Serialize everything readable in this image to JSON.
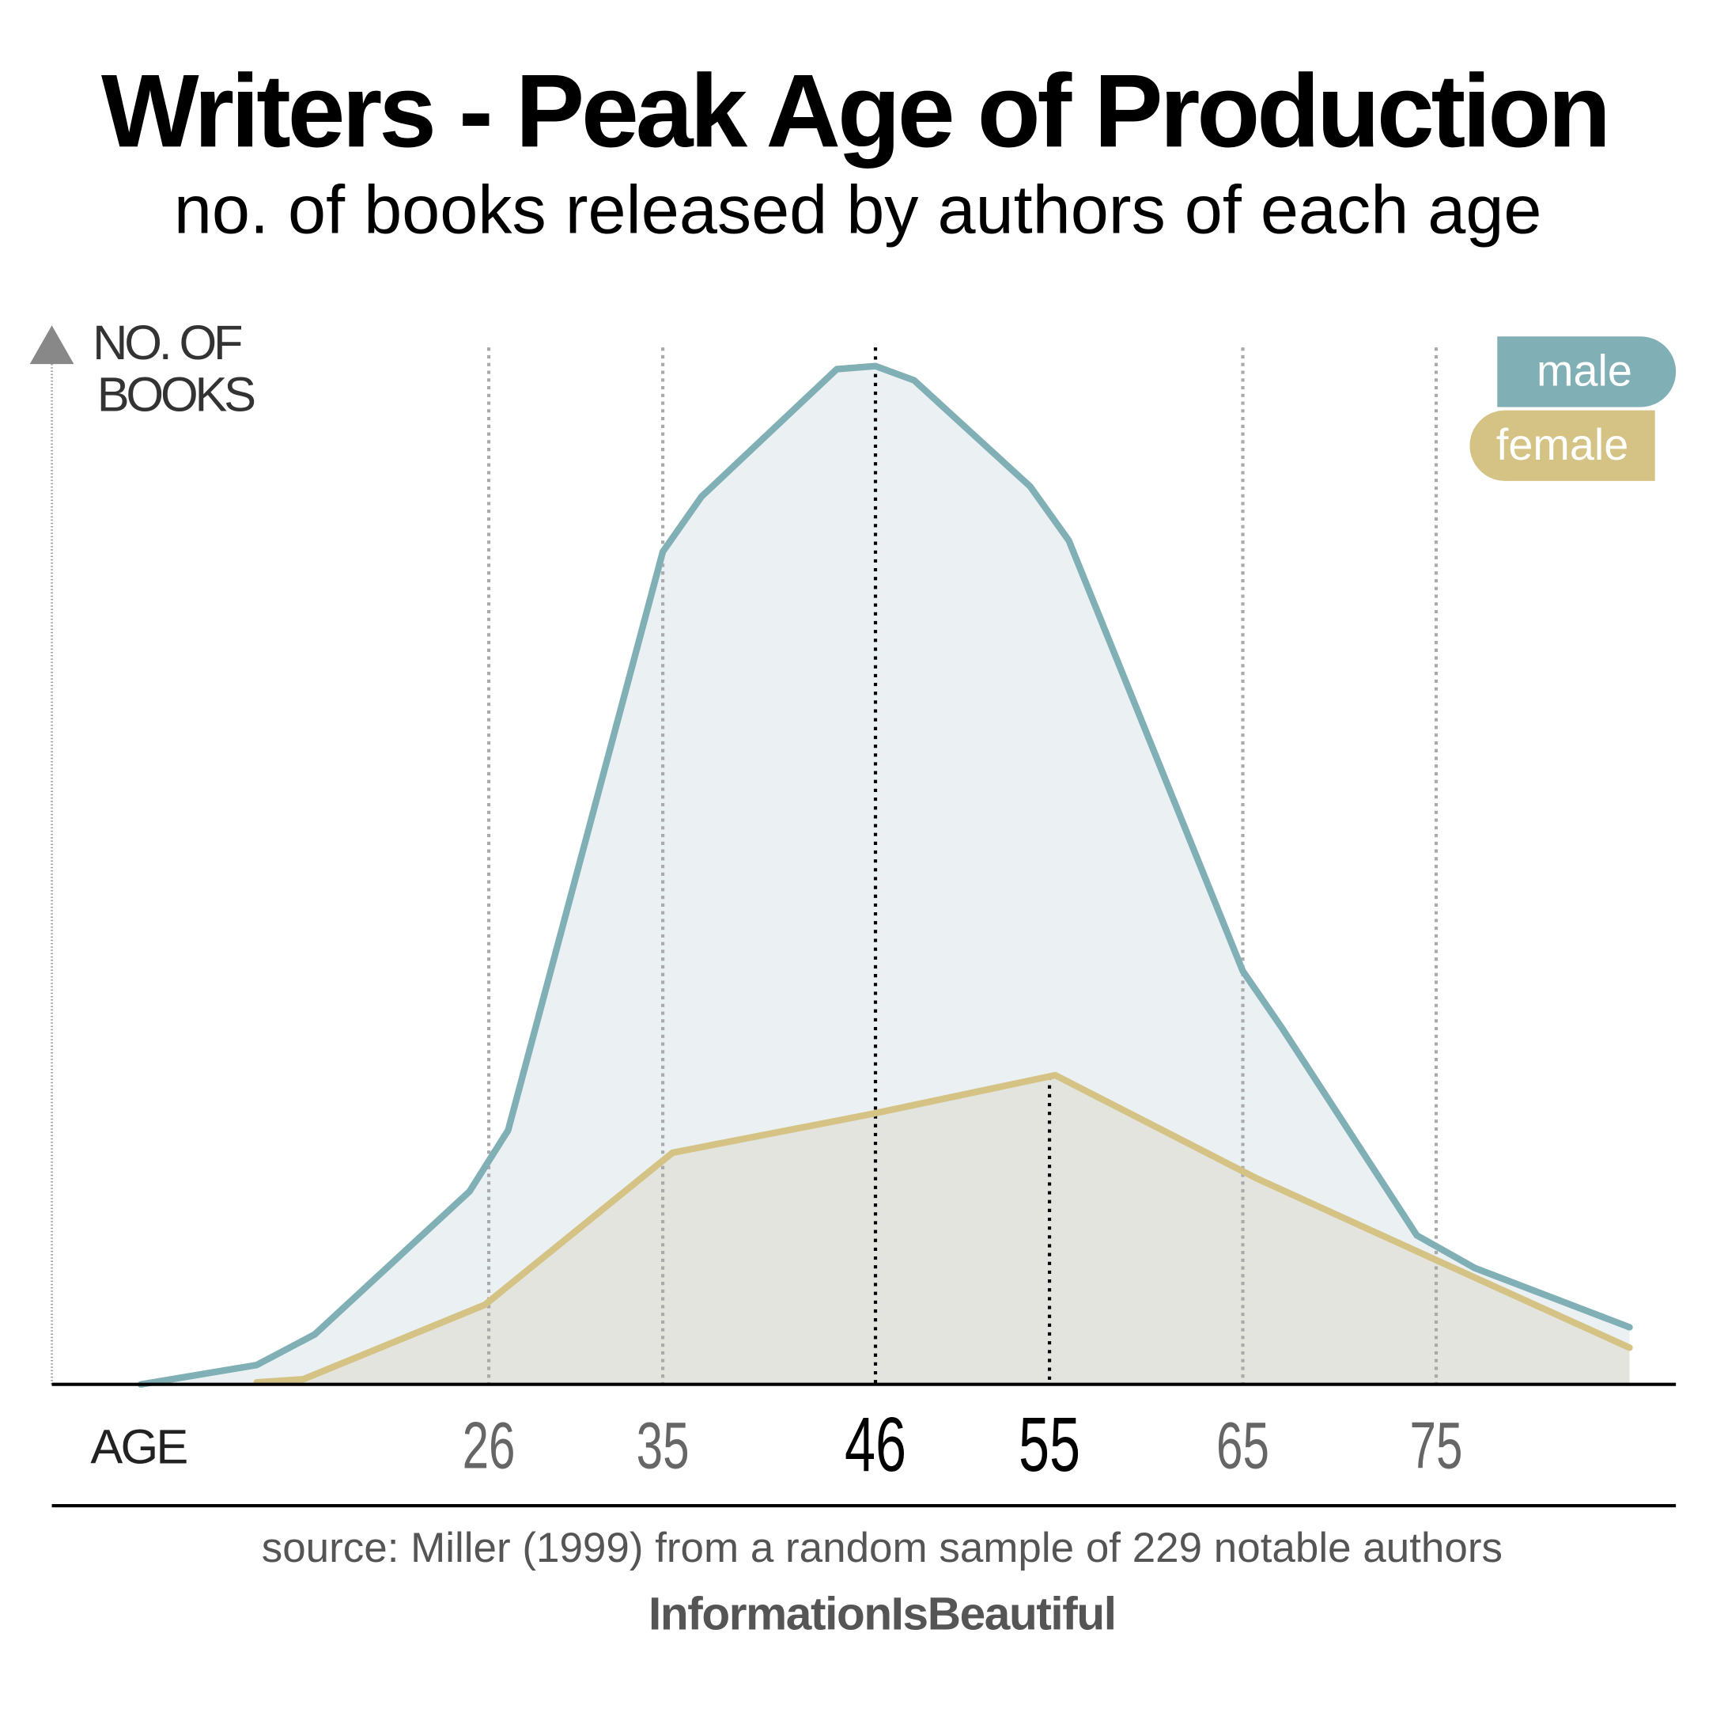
{
  "chart_data": {
    "type": "area",
    "title": "Writers - Peak Age of Production",
    "subtitle": "no. of books released by authors of each age",
    "ylabel": [
      "NO. OF",
      "BOOKS"
    ],
    "xlabel": "AGE",
    "source": "source: Miller (1999) from a random sample of 229 notable authors",
    "brand": "InformationIsBeautiful",
    "xlim": [
      3.4,
      87.4
    ],
    "xticks": [
      26,
      35,
      46,
      55,
      65,
      75
    ],
    "highlight_ticks": [
      46,
      55
    ],
    "ylim": [
      0,
      102
    ],
    "series": [
      {
        "name": "male",
        "color": "#80b0b6",
        "fill": "#e8eef1",
        "x": [
          8,
          14,
          17,
          25,
          27,
          35,
          37,
          44,
          46,
          48,
          54,
          56,
          65,
          67,
          74,
          77,
          85
        ],
        "values": [
          0,
          1.9,
          4.9,
          18.9,
          24.9,
          81.6,
          87,
          99.5,
          99.8,
          98.4,
          88,
          82.7,
          40.5,
          35,
          14.6,
          11.4,
          5.6
        ]
      },
      {
        "name": "female",
        "color": "#d4c384",
        "fill": "#e0e2d8",
        "x": [
          14,
          16.4,
          25.8,
          35.5,
          45.8,
          55.3,
          65.7,
          75.1,
          85
        ],
        "values": [
          0.2,
          0.5,
          7.8,
          22.7,
          26.5,
          30.3,
          20.2,
          12.1,
          3.6
        ]
      }
    ]
  }
}
